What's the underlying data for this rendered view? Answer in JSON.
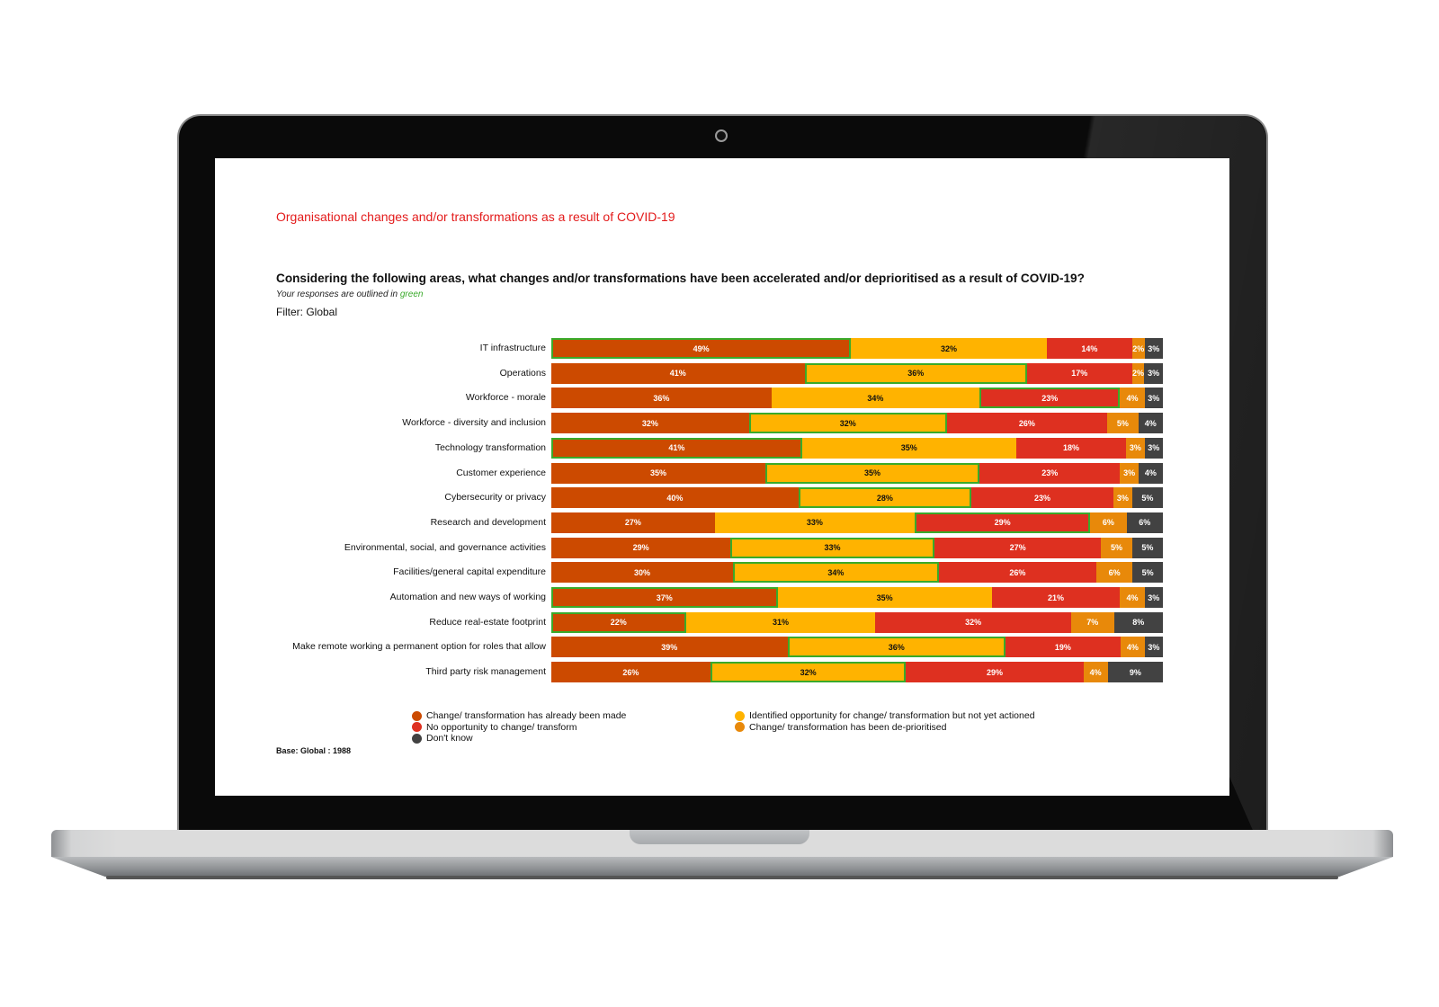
{
  "page": {
    "subtitle": "Organisational changes and/or transformations as a result of COVID-19",
    "question": "Considering the following areas, what changes and/or transformations have been accelerated and/or deprioritised as a result of COVID-19?",
    "note_prefix": "Your responses are outlined in ",
    "note_highlight": "green",
    "filter": "Filter: Global",
    "base": "Base: Global : 1988"
  },
  "colors": {
    "made": "#cc4a00",
    "identified": "#ffb300",
    "no_opportunity": "#de3020",
    "deprioritised": "#e8890a",
    "dont_know": "#424242",
    "highlight": "#3aaa2a",
    "subtitle": "#e31b1b"
  },
  "chart_data": {
    "type": "bar",
    "orientation": "horizontal",
    "stacked": true,
    "normalized": true,
    "title": "Considering the following areas, what changes and/or transformations have been accelerated and/or deprioritised as a result of COVID-19?",
    "xlabel": "",
    "ylabel": "",
    "xlim": [
      0,
      100
    ],
    "grid": false,
    "legend_position": "bottom",
    "categories": [
      "IT infrastructure",
      "Operations",
      "Workforce - morale",
      "Workforce - diversity and inclusion",
      "Technology transformation",
      "Customer experience",
      "Cybersecurity or privacy",
      "Research and development",
      "Environmental, social, and governance activities",
      "Facilities/general capital expenditure",
      "Automation and new ways of working",
      "Reduce real-estate footprint",
      "Make remote working a permanent option for roles that allow",
      "Third party risk management"
    ],
    "series": [
      {
        "key": "made",
        "name": "Change/ transformation has already been made",
        "values": [
          49,
          41,
          36,
          32,
          41,
          35,
          40,
          27,
          29,
          30,
          37,
          22,
          39,
          26
        ]
      },
      {
        "key": "identified",
        "name": "Identified opportunity for change/ transformation but not yet actioned",
        "values": [
          32,
          36,
          34,
          32,
          35,
          35,
          28,
          33,
          33,
          34,
          35,
          31,
          36,
          32
        ]
      },
      {
        "key": "no_opportunity",
        "name": "No opportunity to change/ transform",
        "values": [
          14,
          17,
          23,
          26,
          18,
          23,
          23,
          29,
          27,
          26,
          21,
          32,
          19,
          29
        ]
      },
      {
        "key": "deprioritised",
        "name": "Change/ transformation has been de-prioritised",
        "values": [
          2,
          2,
          4,
          5,
          3,
          3,
          3,
          6,
          5,
          6,
          4,
          7,
          4,
          4
        ]
      },
      {
        "key": "dont_know",
        "name": "Don't know",
        "values": [
          3,
          3,
          3,
          4,
          3,
          4,
          5,
          6,
          5,
          5,
          3,
          8,
          3,
          9
        ]
      }
    ],
    "your_responses": [
      "made",
      "identified",
      "no_opportunity",
      "identified",
      "made",
      "identified",
      "identified",
      "no_opportunity",
      "identified",
      "identified",
      "made",
      "made",
      "identified",
      "identified"
    ],
    "legend": [
      {
        "key": "made",
        "label": "Change/ transformation has already been made"
      },
      {
        "key": "identified",
        "label": "Identified opportunity for change/ transformation but not yet actioned"
      },
      {
        "key": "no_opportunity",
        "label": "No opportunity to change/ transform"
      },
      {
        "key": "deprioritised",
        "label": "Change/ transformation has been de-prioritised"
      },
      {
        "key": "dont_know",
        "label": "Don't know"
      }
    ]
  }
}
